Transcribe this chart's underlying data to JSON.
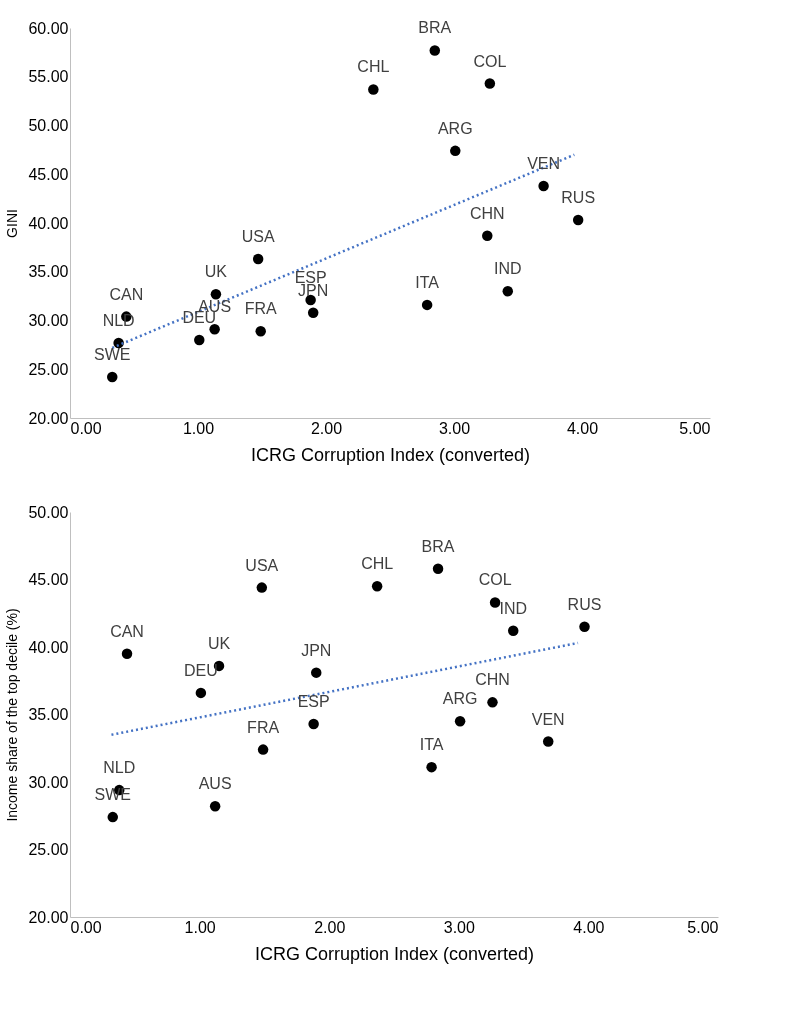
{
  "chart_data": [
    {
      "type": "scatter",
      "xlabel": "ICRG Corruption Index (converted)",
      "ylabel": "GINI",
      "xlim": [
        0,
        5
      ],
      "ylim": [
        20,
        60
      ],
      "xticks": [
        {
          "value": 0,
          "label": "0.00"
        },
        {
          "value": 1,
          "label": "1.00"
        },
        {
          "value": 2,
          "label": "2.00"
        },
        {
          "value": 3,
          "label": "3.00"
        },
        {
          "value": 4,
          "label": "4.00"
        },
        {
          "value": 5,
          "label": "5.00"
        }
      ],
      "yticks": [
        {
          "value": 20,
          "label": "20.00"
        },
        {
          "value": 25,
          "label": "25.00"
        },
        {
          "value": 30,
          "label": "30.00"
        },
        {
          "value": 35,
          "label": "35.00"
        },
        {
          "value": 40,
          "label": "40.00"
        },
        {
          "value": 45,
          "label": "45.00"
        },
        {
          "value": 50,
          "label": "50.00"
        },
        {
          "value": 55,
          "label": "55.00"
        },
        {
          "value": 60,
          "label": "60.00"
        }
      ],
      "grid": false,
      "series": [
        {
          "type": "scatter",
          "color": "#000000",
          "marker": "circle",
          "x": [
            0.33,
            0.38,
            0.44,
            1.01,
            1.13,
            1.14,
            1.47,
            1.49,
            1.88,
            1.9,
            2.37,
            2.79,
            2.85,
            3.01,
            3.26,
            3.28,
            3.42,
            3.7,
            3.97
          ],
          "values": [
            24.2,
            27.7,
            30.4,
            28.0,
            29.1,
            32.7,
            36.3,
            28.9,
            32.1,
            30.8,
            53.7,
            31.6,
            57.7,
            47.4,
            38.7,
            54.3,
            33.0,
            43.8,
            40.3
          ]
        },
        {
          "type": "line",
          "color": "#4472c4",
          "line_style": "dotted",
          "x": [
            0.33,
            3.94
          ],
          "values": [
            27.2,
            47.0
          ]
        }
      ],
      "annotations": [
        {
          "text": "SWE",
          "x": 0.33,
          "y": 24.2
        },
        {
          "text": "NLD",
          "x": 0.38,
          "y": 27.7
        },
        {
          "text": "CAN",
          "x": 0.44,
          "y": 30.4
        },
        {
          "text": "DEU",
          "x": 1.01,
          "y": 28.0
        },
        {
          "text": "AUS",
          "x": 1.13,
          "y": 29.1
        },
        {
          "text": "UK",
          "x": 1.14,
          "y": 32.7
        },
        {
          "text": "USA",
          "x": 1.47,
          "y": 36.3
        },
        {
          "text": "FRA",
          "x": 1.49,
          "y": 28.9
        },
        {
          "text": "ESP",
          "x": 1.88,
          "y": 32.1
        },
        {
          "text": "JPN",
          "x": 1.9,
          "y": 30.8
        },
        {
          "text": "CHL",
          "x": 2.37,
          "y": 53.7
        },
        {
          "text": "ITA",
          "x": 2.79,
          "y": 31.6
        },
        {
          "text": "BRA",
          "x": 2.85,
          "y": 57.7
        },
        {
          "text": "ARG",
          "x": 3.01,
          "y": 47.4
        },
        {
          "text": "CHN",
          "x": 3.26,
          "y": 38.7
        },
        {
          "text": "COL",
          "x": 3.28,
          "y": 54.3
        },
        {
          "text": "IND",
          "x": 3.42,
          "y": 33.0
        },
        {
          "text": "VEN",
          "x": 3.7,
          "y": 43.8
        },
        {
          "text": "RUS",
          "x": 3.97,
          "y": 40.3
        }
      ]
    },
    {
      "type": "scatter",
      "xlabel": "ICRG Corruption Index (converted)",
      "ylabel": "Income share of the top decile (%)",
      "xlim": [
        0,
        5
      ],
      "ylim": [
        20,
        50
      ],
      "xticks": [
        {
          "value": 0,
          "label": "0.00"
        },
        {
          "value": 1,
          "label": "1.00"
        },
        {
          "value": 2,
          "label": "2.00"
        },
        {
          "value": 3,
          "label": "3.00"
        },
        {
          "value": 4,
          "label": "4.00"
        },
        {
          "value": 5,
          "label": "5.00"
        }
      ],
      "yticks": [
        {
          "value": 20,
          "label": "20.00"
        },
        {
          "value": 25,
          "label": "25.00"
        },
        {
          "value": 30,
          "label": "30.00"
        },
        {
          "value": 35,
          "label": "35.00"
        },
        {
          "value": 40,
          "label": "40.00"
        },
        {
          "value": 45,
          "label": "45.00"
        },
        {
          "value": 50,
          "label": "50.00"
        }
      ],
      "grid": false,
      "series": [
        {
          "type": "scatter",
          "color": "#000000",
          "marker": "circle",
          "x": [
            0.33,
            0.38,
            0.44,
            1.01,
            1.12,
            1.15,
            1.48,
            1.49,
            1.88,
            1.9,
            2.37,
            2.79,
            2.84,
            3.01,
            3.26,
            3.28,
            3.42,
            3.69,
            3.97
          ],
          "values": [
            27.4,
            29.4,
            39.5,
            36.6,
            28.2,
            38.6,
            44.4,
            32.4,
            34.3,
            38.1,
            44.5,
            31.1,
            45.8,
            34.5,
            35.9,
            43.3,
            41.2,
            33.0,
            41.5
          ]
        },
        {
          "type": "line",
          "color": "#4472c4",
          "line_style": "dotted",
          "x": [
            0.32,
            3.92
          ],
          "values": [
            33.5,
            40.3
          ]
        }
      ],
      "annotations": [
        {
          "text": "SWE",
          "x": 0.33,
          "y": 27.4
        },
        {
          "text": "NLD",
          "x": 0.38,
          "y": 29.4
        },
        {
          "text": "CAN",
          "x": 0.44,
          "y": 39.5
        },
        {
          "text": "DEU",
          "x": 1.01,
          "y": 36.6
        },
        {
          "text": "AUS",
          "x": 1.12,
          "y": 28.2
        },
        {
          "text": "UK",
          "x": 1.15,
          "y": 38.6
        },
        {
          "text": "USA",
          "x": 1.48,
          "y": 44.4
        },
        {
          "text": "FRA",
          "x": 1.49,
          "y": 32.4
        },
        {
          "text": "ESP",
          "x": 1.88,
          "y": 34.3
        },
        {
          "text": "JPN",
          "x": 1.9,
          "y": 38.1
        },
        {
          "text": "CHL",
          "x": 2.37,
          "y": 44.5
        },
        {
          "text": "ITA",
          "x": 2.79,
          "y": 31.1
        },
        {
          "text": "BRA",
          "x": 2.84,
          "y": 45.8
        },
        {
          "text": "ARG",
          "x": 3.01,
          "y": 34.5
        },
        {
          "text": "CHN",
          "x": 3.26,
          "y": 35.9
        },
        {
          "text": "COL",
          "x": 3.28,
          "y": 43.3
        },
        {
          "text": "IND",
          "x": 3.42,
          "y": 41.2
        },
        {
          "text": "VEN",
          "x": 3.69,
          "y": 33.0
        },
        {
          "text": "RUS",
          "x": 3.97,
          "y": 41.5
        }
      ]
    }
  ]
}
